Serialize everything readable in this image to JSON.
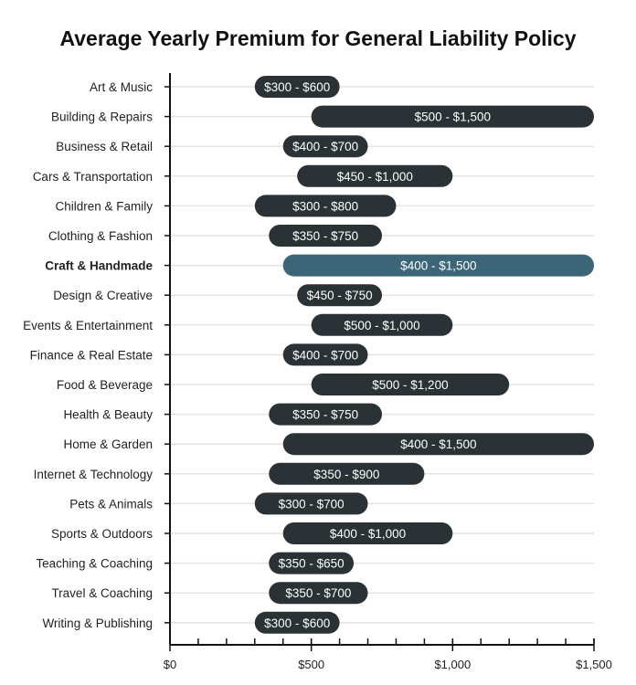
{
  "chart_data": {
    "type": "bar",
    "orientation": "horizontal",
    "subtype": "range",
    "title": "Average Yearly Premium for General Liability Policy",
    "xlabel": "",
    "ylabel": "",
    "xlim": [
      0,
      1500
    ],
    "x_ticks": [
      {
        "value": 0,
        "label": "$0"
      },
      {
        "value": 500,
        "label": "$500"
      },
      {
        "value": 1000,
        "label": "$1,000"
      },
      {
        "value": 1500,
        "label": "$1,500"
      }
    ],
    "minor_tick_step": 100,
    "grid": true,
    "colors": {
      "default": "#2a3236",
      "highlight": "#3d6578"
    },
    "highlight": "Craft & Handmade",
    "categories": [
      {
        "label": "Art & Music",
        "low": 300,
        "high": 600,
        "text": "$300 - $600"
      },
      {
        "label": "Building & Repairs",
        "low": 500,
        "high": 1500,
        "text": "$500 - $1,500"
      },
      {
        "label": "Business & Retail",
        "low": 400,
        "high": 700,
        "text": "$400 - $700"
      },
      {
        "label": "Cars & Transportation",
        "low": 450,
        "high": 1000,
        "text": "$450 - $1,000"
      },
      {
        "label": "Children & Family",
        "low": 300,
        "high": 800,
        "text": "$300 - $800"
      },
      {
        "label": "Clothing & Fashion",
        "low": 350,
        "high": 750,
        "text": "$350 - $750"
      },
      {
        "label": "Craft & Handmade",
        "low": 400,
        "high": 1500,
        "text": "$400 - $1,500"
      },
      {
        "label": "Design & Creative",
        "low": 450,
        "high": 750,
        "text": "$450 - $750"
      },
      {
        "label": "Events & Entertainment",
        "low": 500,
        "high": 1000,
        "text": "$500 - $1,000"
      },
      {
        "label": "Finance & Real Estate",
        "low": 400,
        "high": 700,
        "text": "$400 - $700"
      },
      {
        "label": "Food & Beverage",
        "low": 500,
        "high": 1200,
        "text": "$500 - $1,200"
      },
      {
        "label": "Health & Beauty",
        "low": 350,
        "high": 750,
        "text": "$350 - $750"
      },
      {
        "label": "Home & Garden",
        "low": 400,
        "high": 1500,
        "text": "$400 - $1,500"
      },
      {
        "label": "Internet & Technology",
        "low": 350,
        "high": 900,
        "text": "$350 - $900"
      },
      {
        "label": "Pets & Animals",
        "low": 300,
        "high": 700,
        "text": "$300 - $700"
      },
      {
        "label": "Sports & Outdoors",
        "low": 400,
        "high": 1000,
        "text": "$400 - $1,000"
      },
      {
        "label": "Teaching & Coaching",
        "low": 350,
        "high": 650,
        "text": "$350 - $650"
      },
      {
        "label": "Travel & Coaching",
        "low": 350,
        "high": 700,
        "text": "$350 - $700"
      },
      {
        "label": "Writing & Publishing",
        "low": 300,
        "high": 600,
        "text": "$300 - $600"
      }
    ]
  }
}
